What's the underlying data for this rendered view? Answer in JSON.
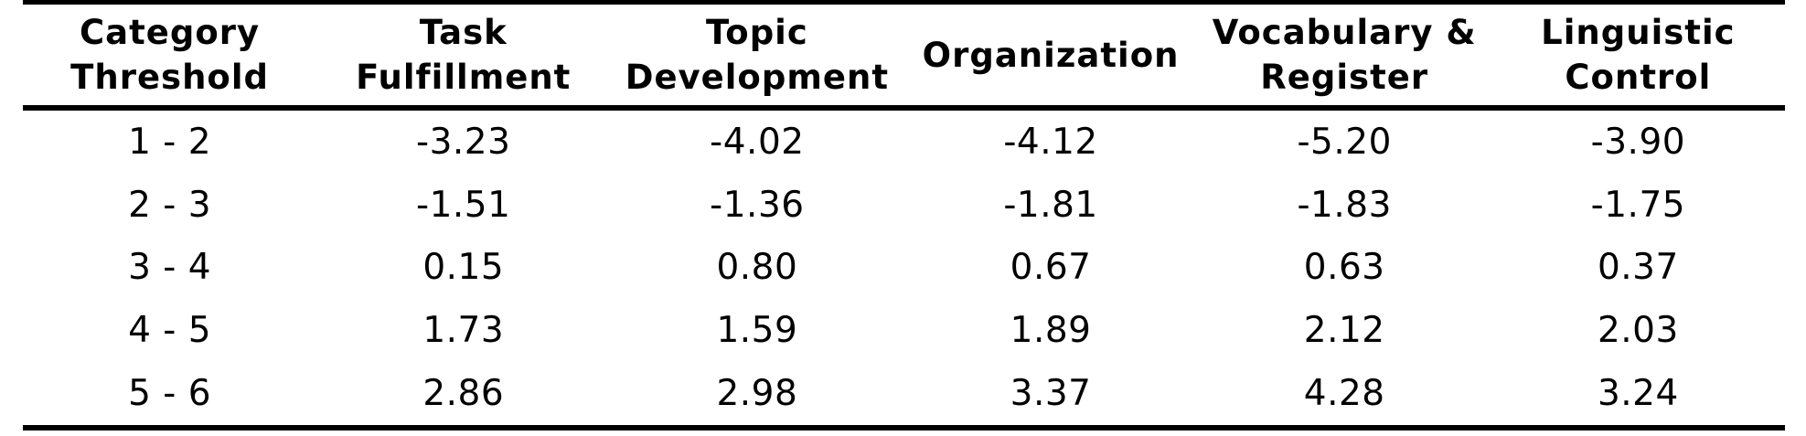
{
  "page": {
    "background": "#ffffff",
    "text_color": "#000000",
    "rule_color": "#000000"
  },
  "table": {
    "headers": [
      [
        "Category",
        "Threshold"
      ],
      [
        "Task",
        "Fulfillment"
      ],
      [
        "Topic",
        "Development"
      ],
      [
        "Organization"
      ],
      [
        "Vocabulary &",
        "Register"
      ],
      [
        "Linguistic",
        "Control"
      ]
    ]
  },
  "chart_data": {
    "type": "table",
    "columns": [
      "Category Threshold",
      "Task Fulfillment",
      "Topic Development",
      "Organization",
      "Vocabulary & Register",
      "Linguistic Control"
    ],
    "rows": [
      [
        "1 - 2",
        "-3.23",
        "-4.02",
        "-4.12",
        "-5.20",
        "-3.90"
      ],
      [
        "2 - 3",
        "-1.51",
        "-1.36",
        "-1.81",
        "-1.83",
        "-1.75"
      ],
      [
        "3 - 4",
        "0.15",
        "0.80",
        "0.67",
        "0.63",
        "0.37"
      ],
      [
        "4 - 5",
        "1.73",
        "1.59",
        "1.89",
        "2.12",
        "2.03"
      ],
      [
        "5 - 6",
        "2.86",
        "2.98",
        "3.37",
        "4.28",
        "3.24"
      ]
    ]
  }
}
